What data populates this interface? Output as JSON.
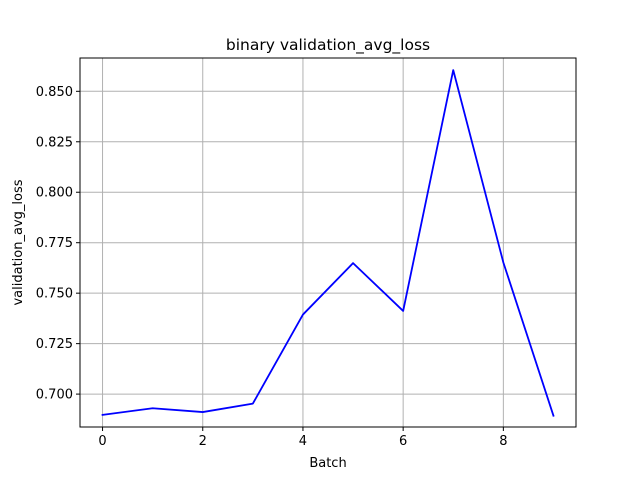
{
  "chart_data": {
    "type": "line",
    "title": "binary validation_avg_loss",
    "xlabel": "Batch",
    "ylabel": "validation_avg_loss",
    "x": [
      0,
      1,
      2,
      3,
      4,
      5,
      6,
      7,
      8,
      9
    ],
    "series": [
      {
        "values": [
          0.6897,
          0.693,
          0.6911,
          0.6953,
          0.7394,
          0.7649,
          0.7412,
          0.8605,
          0.7652,
          0.6893
        ],
        "color": "#0000ff"
      }
    ],
    "xticks": [
      0,
      2,
      4,
      6,
      8
    ],
    "xtick_labels": [
      "0",
      "2",
      "4",
      "6",
      "8"
    ],
    "yticks": [
      0.7,
      0.725,
      0.75,
      0.775,
      0.8,
      0.825,
      0.85
    ],
    "ytick_labels": [
      "0.700",
      "0.725",
      "0.750",
      "0.775",
      "0.800",
      "0.825",
      "0.850"
    ],
    "xlim": [
      -0.45,
      9.45
    ],
    "ylim": [
      0.6837,
      0.8665
    ],
    "grid": true,
    "grid_color": "#b0b0b0",
    "legend": false
  }
}
